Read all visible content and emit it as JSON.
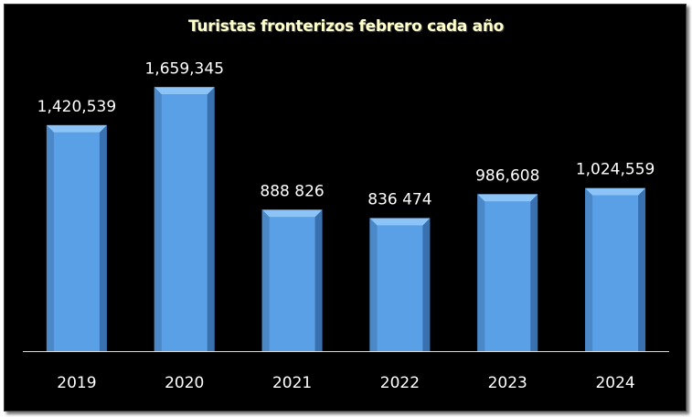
{
  "chart_data": {
    "type": "bar",
    "title": "Turistas fronterizos febrero cada año",
    "categories": [
      "2019",
      "2020",
      "2021",
      "2022",
      "2023",
      "2024"
    ],
    "values": [
      1420539,
      1659345,
      888826,
      836474,
      986608,
      1024559
    ],
    "value_labels": [
      "1,420,539",
      "1,659,345",
      "888 826",
      "836 474",
      "986,608",
      "1,024,559"
    ],
    "xlabel": "",
    "ylabel": "",
    "ylim": [
      0,
      1800000
    ],
    "grid": false,
    "legend": "none",
    "colors": {
      "background": "#000000",
      "bar_face": "#5aa0e6",
      "bar_top": "#8cc4f8",
      "bar_side": "#3870b0",
      "bar_bevel": "#4a88c8",
      "text": "#ffffff",
      "title": "#ffffcc",
      "axis": "#d9d9d9"
    }
  }
}
